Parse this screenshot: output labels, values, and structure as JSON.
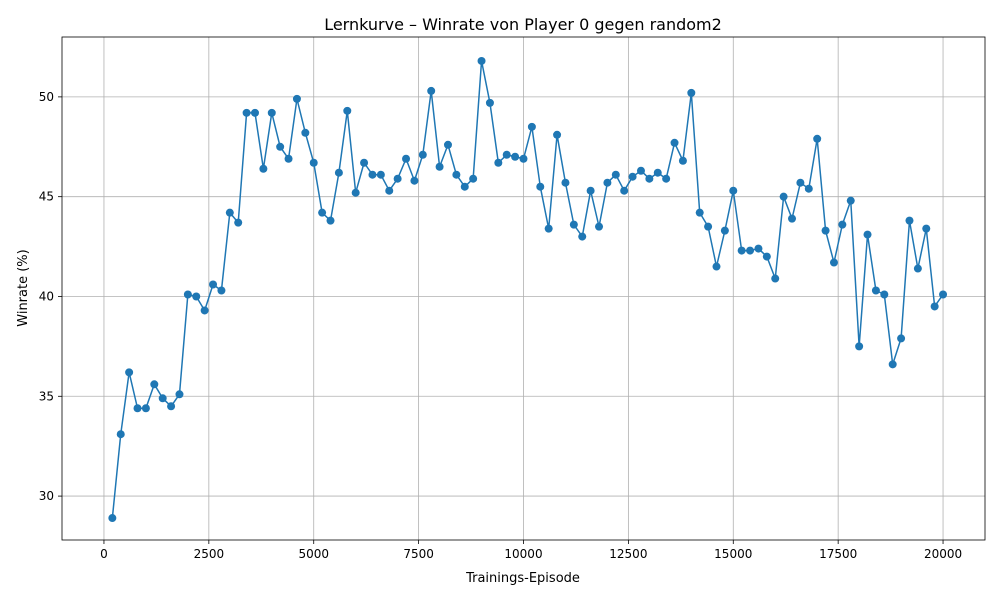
{
  "chart_data": {
    "type": "line",
    "title": "Lernkurve – Winrate von Player 0 gegen random2",
    "xlabel": "Trainings-Episode",
    "ylabel": "Winrate (%)",
    "xlim": [
      -1000,
      21000
    ],
    "ylim": [
      27.8,
      53.0
    ],
    "xticks": [
      0,
      2500,
      5000,
      7500,
      10000,
      12500,
      15000,
      17500,
      20000
    ],
    "yticks": [
      30,
      35,
      40,
      45,
      50
    ],
    "grid": true,
    "series": [
      {
        "color": "#1f77b4",
        "marker": "circle",
        "x": [
          200,
          400,
          600,
          800,
          1000,
          1200,
          1400,
          1600,
          1800,
          2000,
          2200,
          2400,
          2600,
          2800,
          3000,
          3200,
          3400,
          3600,
          3800,
          4000,
          4200,
          4400,
          4600,
          4800,
          5000,
          5200,
          5400,
          5600,
          5800,
          6000,
          6200,
          6400,
          6600,
          6800,
          7000,
          7200,
          7400,
          7600,
          7800,
          8000,
          8200,
          8400,
          8600,
          8800,
          9000,
          9200,
          9400,
          9600,
          9800,
          10000,
          10200,
          10400,
          10600,
          10800,
          11000,
          11200,
          11400,
          11600,
          11800,
          12000,
          12200,
          12400,
          12600,
          12800,
          13000,
          13200,
          13400,
          13600,
          13800,
          14000,
          14200,
          14400,
          14600,
          14800,
          15000,
          15200,
          15400,
          15600,
          15800,
          16000,
          16200,
          16400,
          16600,
          16800,
          17000,
          17200,
          17400,
          17600,
          17800,
          18000,
          18200,
          18400,
          18600,
          18800,
          19000,
          19200,
          19400,
          19600,
          19800,
          20000
        ],
        "y": [
          28.9,
          33.1,
          36.2,
          34.4,
          34.4,
          35.6,
          34.9,
          34.5,
          35.1,
          40.1,
          40.0,
          39.3,
          40.6,
          40.3,
          44.2,
          43.7,
          49.2,
          49.2,
          46.4,
          49.2,
          47.5,
          46.9,
          49.9,
          48.2,
          46.7,
          44.2,
          43.8,
          46.2,
          49.3,
          45.2,
          46.7,
          46.1,
          46.1,
          45.3,
          45.9,
          46.9,
          45.8,
          47.1,
          50.3,
          46.5,
          47.6,
          46.1,
          45.5,
          45.9,
          51.8,
          49.7,
          46.7,
          47.1,
          47.0,
          46.9,
          48.5,
          45.5,
          43.4,
          48.1,
          45.7,
          43.6,
          43.0,
          45.3,
          43.5,
          45.7,
          46.1,
          45.3,
          46.0,
          46.3,
          45.9,
          46.2,
          45.9,
          47.7,
          46.8,
          50.2,
          44.2,
          43.5,
          41.5,
          43.3,
          45.3,
          42.3,
          42.3,
          42.4,
          42.0,
          40.9,
          45.0,
          43.9,
          45.7,
          45.4,
          47.9,
          43.3,
          41.7,
          43.6,
          44.8,
          37.5,
          43.1,
          40.3,
          40.1,
          36.6,
          37.9,
          43.8,
          41.4,
          43.4,
          39.5,
          40.1
        ]
      }
    ]
  }
}
